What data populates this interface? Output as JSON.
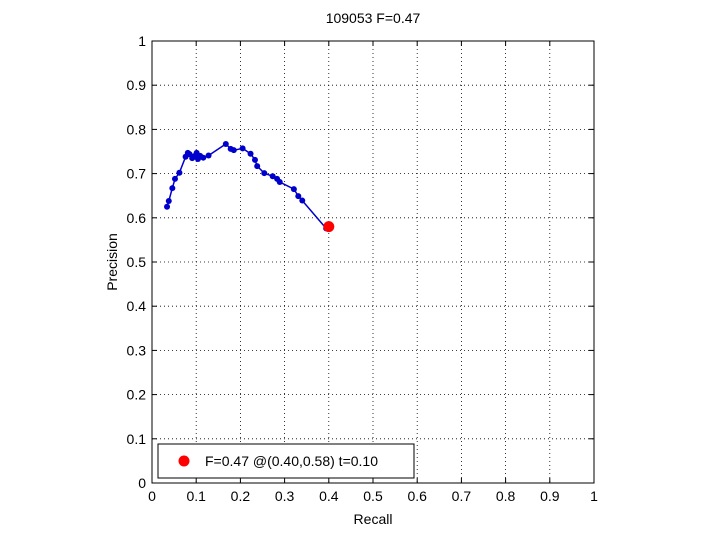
{
  "chart_data": {
    "type": "line",
    "title": "109053 F=0.47",
    "xlabel": "Recall",
    "ylabel": "Precision",
    "xlim": [
      0,
      1
    ],
    "ylim": [
      0,
      1
    ],
    "xticks": [
      "0",
      "0.1",
      "0.2",
      "0.3",
      "0.4",
      "0.5",
      "0.6",
      "0.7",
      "0.8",
      "0.9",
      "1"
    ],
    "yticks": [
      "0",
      "0.1",
      "0.2",
      "0.3",
      "0.4",
      "0.5",
      "0.6",
      "0.7",
      "0.8",
      "0.9",
      "1"
    ],
    "grid": true,
    "legend_position": "bottom-left",
    "series": [
      {
        "color": "#0000cc",
        "x": [
          0.034,
          0.038,
          0.046,
          0.052,
          0.062,
          0.076,
          0.081,
          0.085,
          0.091,
          0.097,
          0.101,
          0.104,
          0.109,
          0.116,
          0.128,
          0.167,
          0.178,
          0.185,
          0.205,
          0.223,
          0.233,
          0.238,
          0.254,
          0.273,
          0.283,
          0.289,
          0.321,
          0.331,
          0.34,
          0.394
        ],
        "y": [
          0.625,
          0.638,
          0.667,
          0.688,
          0.702,
          0.738,
          0.747,
          0.744,
          0.735,
          0.74,
          0.747,
          0.733,
          0.74,
          0.736,
          0.741,
          0.767,
          0.756,
          0.753,
          0.757,
          0.745,
          0.731,
          0.717,
          0.701,
          0.694,
          0.688,
          0.681,
          0.665,
          0.649,
          0.639,
          0.576
        ]
      }
    ],
    "best_point": {
      "x": 0.4,
      "y": 0.58,
      "color": "#ff0000",
      "label": "F=0.47 @(0.40,0.58) t=0.10"
    }
  }
}
